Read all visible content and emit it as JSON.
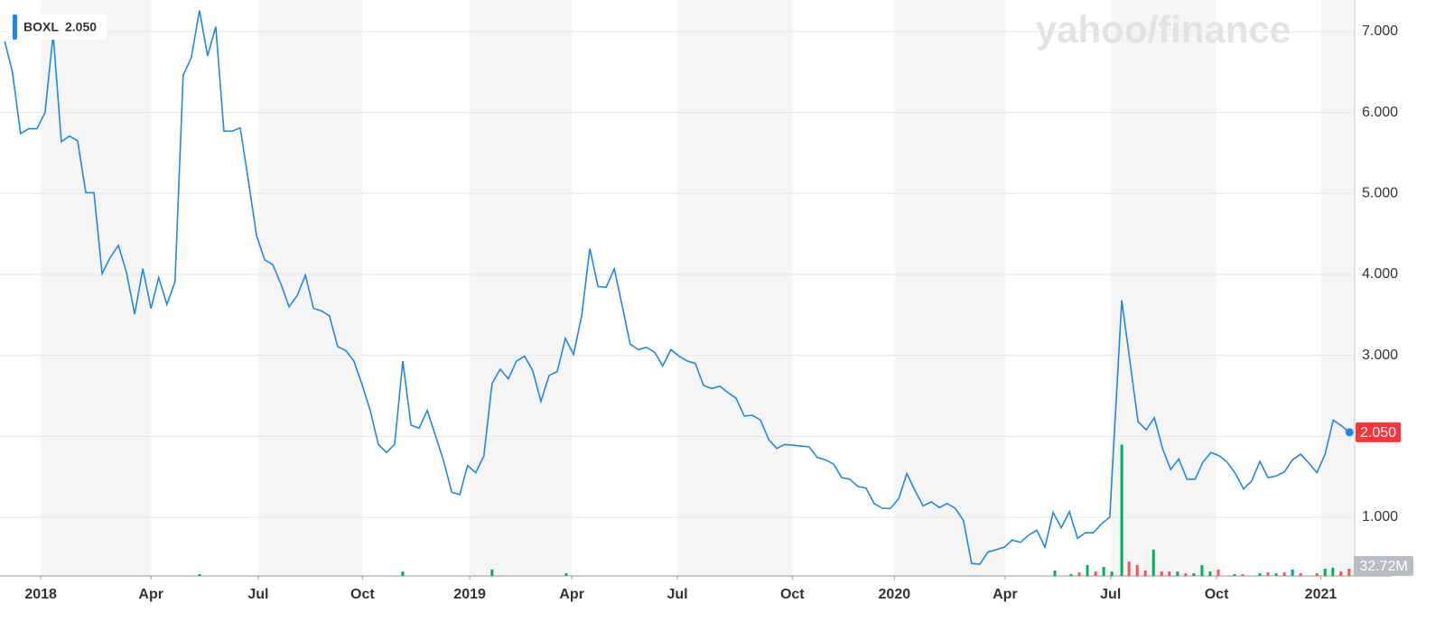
{
  "chart_data": {
    "type": "line",
    "watermark": "yahoo/finance",
    "last_price": "2.050",
    "xlim": [
      2017.905,
      2021.063
    ],
    "xticks": [
      {
        "value": 2018.0,
        "label": "2018"
      },
      {
        "value": 2018.257,
        "label": "Apr"
      },
      {
        "value": 2018.507,
        "label": "Jul"
      },
      {
        "value": 2018.75,
        "label": "Oct"
      },
      {
        "value": 2019.0,
        "label": "2019"
      },
      {
        "value": 2019.238,
        "label": "Apr"
      },
      {
        "value": 2019.484,
        "label": "Jul"
      },
      {
        "value": 2019.752,
        "label": "Oct"
      },
      {
        "value": 2019.99,
        "label": "2020"
      },
      {
        "value": 2020.248,
        "label": "Apr"
      },
      {
        "value": 2020.494,
        "label": "Jul"
      },
      {
        "value": 2020.741,
        "label": "Oct"
      },
      {
        "value": 2020.984,
        "label": "2021"
      }
    ],
    "ylim": [
      0.275,
      7.39
    ],
    "yticks": [
      {
        "value": 1,
        "label": "1.000"
      },
      {
        "value": 2,
        "label": "2.000"
      },
      {
        "value": 3,
        "label": "3.000"
      },
      {
        "value": 4,
        "label": "4.000"
      },
      {
        "value": 5,
        "label": "5.000"
      },
      {
        "value": 6,
        "label": "6.000"
      },
      {
        "value": 7,
        "label": "7.000"
      }
    ],
    "grid": true,
    "series": [
      {
        "name": "BOXL",
        "color": "#1e88e5",
        "x": [
          2017.916,
          2017.934,
          2017.953,
          2017.972,
          2017.991,
          2018.01,
          2018.029,
          2018.048,
          2018.067,
          2018.086,
          2018.105,
          2018.124,
          2018.143,
          2018.162,
          2018.181,
          2018.2,
          2018.219,
          2018.238,
          2018.257,
          2018.275,
          2018.294,
          2018.313,
          2018.332,
          2018.351,
          2018.37,
          2018.389,
          2018.408,
          2018.427,
          2018.446,
          2018.465,
          2018.484,
          2018.503,
          2018.522,
          2018.541,
          2018.56,
          2018.579,
          2018.598,
          2018.617,
          2018.636,
          2018.654,
          2018.673,
          2018.692,
          2018.711,
          2018.73,
          2018.749,
          2018.768,
          2018.787,
          2018.806,
          2018.825,
          2018.844,
          2018.863,
          2018.882,
          2018.901,
          2018.92,
          2018.939,
          2018.958,
          2018.977,
          2018.995,
          2019.014,
          2019.033,
          2019.052,
          2019.071,
          2019.09,
          2019.109,
          2019.128,
          2019.147,
          2019.166,
          2019.185,
          2019.204,
          2019.223,
          2019.242,
          2019.261,
          2019.28,
          2019.299,
          2019.318,
          2019.337,
          2019.356,
          2019.374,
          2019.393,
          2019.412,
          2019.431,
          2019.45,
          2019.469,
          2019.488,
          2019.507,
          2019.526,
          2019.545,
          2019.564,
          2019.583,
          2019.602,
          2019.621,
          2019.64,
          2019.659,
          2019.678,
          2019.697,
          2019.716,
          2019.734,
          2019.753,
          2019.772,
          2019.791,
          2019.81,
          2019.829,
          2019.848,
          2019.867,
          2019.886,
          2019.905,
          2019.924,
          2019.943,
          2019.962,
          2019.981,
          2020.0,
          2020.019,
          2020.038,
          2020.057,
          2020.076,
          2020.095,
          2020.113,
          2020.132,
          2020.151,
          2020.17,
          2020.189,
          2020.208,
          2020.227,
          2020.246,
          2020.265,
          2020.284,
          2020.303,
          2020.322,
          2020.341,
          2020.36,
          2020.379,
          2020.398,
          2020.417,
          2020.436,
          2020.454,
          2020.473,
          2020.492,
          2020.52,
          2020.539,
          2020.558,
          2020.577,
          2020.596,
          2020.615,
          2020.634,
          2020.653,
          2020.672,
          2020.691,
          2020.709,
          2020.728,
          2020.747,
          2020.766,
          2020.785,
          2020.804,
          2020.823,
          2020.842,
          2020.861,
          2020.88,
          2020.899,
          2020.918,
          2020.937,
          2020.956,
          2020.975,
          2020.994,
          2021.013,
          2021.032,
          2021.051
        ],
        "values": [
          6.88,
          6.5,
          5.74,
          5.8,
          5.8,
          6.0,
          6.97,
          5.64,
          5.71,
          5.65,
          5.01,
          5.01,
          4.01,
          4.21,
          4.36,
          4.02,
          3.51,
          4.07,
          3.58,
          3.96,
          3.63,
          3.91,
          6.46,
          6.68,
          7.26,
          6.7,
          7.06,
          5.77,
          5.77,
          5.81,
          5.16,
          4.48,
          4.18,
          4.12,
          3.88,
          3.6,
          3.74,
          3.99,
          3.58,
          3.55,
          3.49,
          3.11,
          3.06,
          2.93,
          2.64,
          2.32,
          1.9,
          1.8,
          1.9,
          2.93,
          2.14,
          2.1,
          2.32,
          2.01,
          1.7,
          1.31,
          1.28,
          1.64,
          1.55,
          1.76,
          2.65,
          2.83,
          2.71,
          2.93,
          2.99,
          2.81,
          2.43,
          2.75,
          2.8,
          3.21,
          3.01,
          3.49,
          4.32,
          3.85,
          3.84,
          4.07,
          3.6,
          3.14,
          3.07,
          3.1,
          3.04,
          2.87,
          3.07,
          2.99,
          2.93,
          2.9,
          2.63,
          2.59,
          2.62,
          2.54,
          2.47,
          2.25,
          2.26,
          2.2,
          1.96,
          1.85,
          1.9,
          1.89,
          1.88,
          1.87,
          1.74,
          1.71,
          1.66,
          1.49,
          1.47,
          1.38,
          1.36,
          1.17,
          1.11,
          1.11,
          1.23,
          1.54,
          1.33,
          1.14,
          1.19,
          1.12,
          1.17,
          1.11,
          0.96,
          0.43,
          0.42,
          0.57,
          0.6,
          0.63,
          0.72,
          0.69,
          0.78,
          0.84,
          0.63,
          1.06,
          0.87,
          1.07,
          0.74,
          0.81,
          0.81,
          0.92,
          1.0,
          3.68,
          2.93,
          2.18,
          2.08,
          2.23,
          1.85,
          1.59,
          1.72,
          1.47,
          1.47,
          1.68,
          1.8,
          1.76,
          1.68,
          1.54,
          1.35,
          1.45,
          1.69,
          1.49,
          1.51,
          1.56,
          1.71,
          1.78,
          1.67,
          1.55,
          1.78,
          2.2,
          2.13,
          2.05
        ]
      }
    ],
    "volume": {
      "label": "32.72M",
      "vlim": [
        0,
        2600
      ],
      "x": [
        2018.37,
        2018.844,
        2019.052,
        2019.225,
        2020.364,
        2020.402,
        2020.421,
        2020.44,
        2020.459,
        2020.478,
        2020.497,
        2020.52,
        2020.537,
        2020.556,
        2020.575,
        2020.594,
        2020.613,
        2020.631,
        2020.65,
        2020.669,
        2020.688,
        2020.707,
        2020.726,
        2020.745,
        2020.783,
        2020.802,
        2020.842,
        2020.861,
        2020.88,
        2020.899,
        2020.918,
        2020.937,
        2020.975,
        2020.994,
        2021.012,
        2021.031,
        2021.05
      ],
      "values": [
        8,
        20,
        29,
        12,
        25,
        8,
        16,
        49,
        20,
        41,
        20,
        593,
        65,
        49,
        25,
        119,
        20,
        20,
        20,
        12,
        12,
        49,
        20,
        29,
        8,
        8,
        12,
        16,
        12,
        16,
        29,
        12,
        12,
        33,
        37,
        20,
        32.72
      ],
      "colors": [
        "#00b061",
        "#00b061",
        "#00b061",
        "#00b061",
        "#00b061",
        "#00b061",
        "#ff4d52",
        "#00b061",
        "#ff4d52",
        "#00b061",
        "#00b061",
        "#00b061",
        "#ff4d52",
        "#ff4d52",
        "#ff4d52",
        "#00b061",
        "#ff4d52",
        "#ff4d52",
        "#00b061",
        "#ff4d52",
        "#00b061",
        "#00b061",
        "#00b061",
        "#ff4d52",
        "#00b061",
        "#ff4d52",
        "#00b061",
        "#ff4d52",
        "#00b061",
        "#ff4d52",
        "#00b061",
        "#ff4d52",
        "#ff4d52",
        "#00b061",
        "#00b061",
        "#ff4d52",
        "#ff4d52"
      ]
    }
  }
}
